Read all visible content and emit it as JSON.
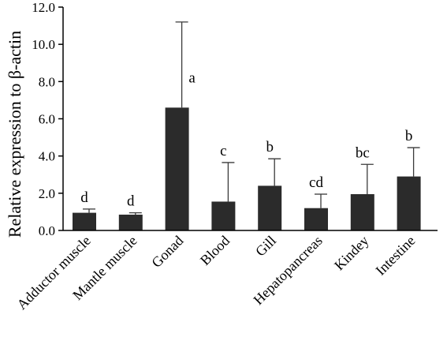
{
  "chart_data": {
    "type": "bar",
    "title": "",
    "xlabel": "",
    "ylabel": "Relative expression to β-actin",
    "ylim": [
      0,
      12
    ],
    "yticks": [
      "0.0",
      "2.0",
      "4.0",
      "6.0",
      "8.0",
      "10.0",
      "12.0"
    ],
    "yticks_values": [
      0,
      2,
      4,
      6,
      8,
      10,
      12
    ],
    "categories": [
      "Adductor muscle",
      "Mantle muscle",
      "Gonad",
      "Blood",
      "Gill",
      "Hepatopancreas",
      "Kindey",
      "Intestine"
    ],
    "values": [
      0.95,
      0.85,
      6.6,
      1.55,
      2.4,
      1.2,
      1.95,
      2.9
    ],
    "errors": [
      0.2,
      0.1,
      4.6,
      2.1,
      1.45,
      0.75,
      1.6,
      1.55
    ],
    "significance": [
      "d",
      "d",
      "a",
      "c",
      "b",
      "cd",
      "bc",
      "b"
    ],
    "bar_color": "#2b2b2b",
    "grid": false,
    "legend": "none"
  }
}
